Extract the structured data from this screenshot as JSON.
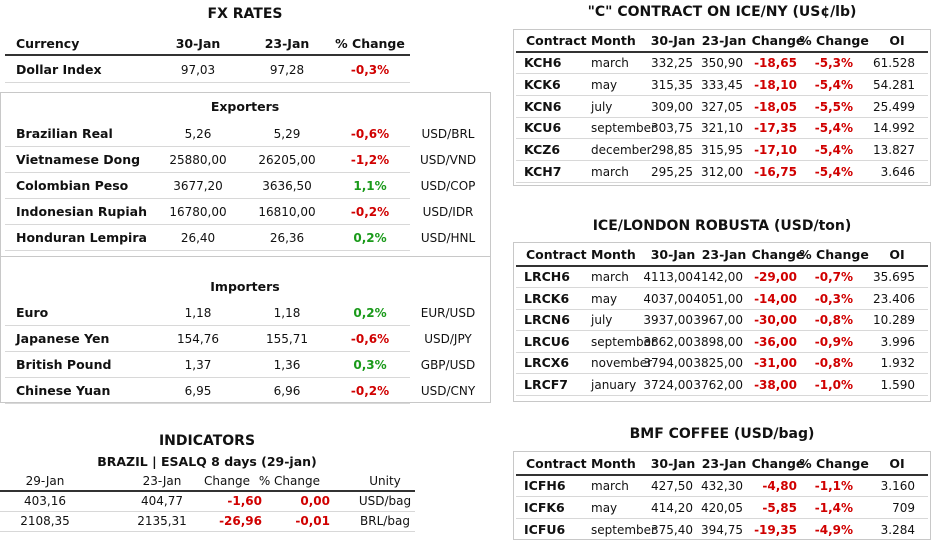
{
  "fx_rates": {
    "title": "FX RATES",
    "columns": [
      "Currency",
      "30-Jan",
      "23-Jan",
      "% Change"
    ],
    "rows": [
      [
        "Dollar Index",
        "97,03",
        "97,28",
        "-0,3%"
      ]
    ],
    "sections": [
      {
        "title": "Exporters",
        "rows": [
          [
            "Brazilian Real",
            "5,26",
            "5,29",
            "-0,6%",
            "USD/BRL"
          ],
          [
            "Vietnamese Dong",
            "25880,00",
            "26205,00",
            "-1,2%",
            "USD/VND"
          ],
          [
            "Colombian Peso",
            "3677,20",
            "3636,50",
            "1,1%",
            "USD/COP"
          ],
          [
            "Indonesian Rupiah",
            "16780,00",
            "16810,00",
            "-0,2%",
            "USD/IDR"
          ],
          [
            "Honduran Lempira",
            "26,40",
            "26,36",
            "0,2%",
            "USD/HNL"
          ]
        ]
      },
      {
        "title": "Importers",
        "rows": [
          [
            "Euro",
            "1,18",
            "1,18",
            "0,2%",
            "EUR/USD"
          ],
          [
            "Japanese Yen",
            "154,76",
            "155,71",
            "-0,6%",
            "USD/JPY"
          ],
          [
            "British Pound",
            "1,37",
            "1,36",
            "0,3%",
            "GBP/USD"
          ],
          [
            "Chinese Yuan",
            "6,95",
            "6,96",
            "-0,2%",
            "USD/CNY"
          ]
        ]
      }
    ]
  },
  "indicators": {
    "title": "INDICATORS",
    "subtitle": "BRAZIL | ESALQ 8 days (29-jan)",
    "columns": [
      "29-Jan",
      "23-Jan",
      "Change",
      "% Change",
      "Unity"
    ],
    "rows": [
      [
        "403,16",
        "404,77",
        "-1,60",
        "0,00",
        "USD/bag"
      ],
      [
        "2108,35",
        "2135,31",
        "-26,96",
        "-0,01",
        "BRL/bag"
      ]
    ]
  },
  "ice_ny": {
    "title": "\"C\" CONTRACT ON ICE/NY (US¢/lb)",
    "columns": [
      "Contract",
      "Month",
      "30-Jan",
      "23-Jan",
      "Change",
      "% Change",
      "OI"
    ],
    "rows": [
      [
        "KCH6",
        "march",
        "332,25",
        "350,90",
        "-18,65",
        "-5,3%",
        "61.528"
      ],
      [
        "KCK6",
        "may",
        "315,35",
        "333,45",
        "-18,10",
        "-5,4%",
        "54.281"
      ],
      [
        "KCN6",
        "july",
        "309,00",
        "327,05",
        "-18,05",
        "-5,5%",
        "25.499"
      ],
      [
        "KCU6",
        "september",
        "303,75",
        "321,10",
        "-17,35",
        "-5,4%",
        "14.992"
      ],
      [
        "KCZ6",
        "december",
        "298,85",
        "315,95",
        "-17,10",
        "-5,4%",
        "13.827"
      ],
      [
        "KCH7",
        "march",
        "295,25",
        "312,00",
        "-16,75",
        "-5,4%",
        "3.646"
      ]
    ]
  },
  "robusta": {
    "title": "ICE/LONDON ROBUSTA (USD/ton)",
    "columns": [
      "Contract",
      "Month",
      "30-Jan",
      "23-Jan",
      "Change",
      "% Change",
      "OI"
    ],
    "rows": [
      [
        "LRCH6",
        "march",
        "4113,00",
        "4142,00",
        "-29,00",
        "-0,7%",
        "35.695"
      ],
      [
        "LRCK6",
        "may",
        "4037,00",
        "4051,00",
        "-14,00",
        "-0,3%",
        "23.406"
      ],
      [
        "LRCN6",
        "july",
        "3937,00",
        "3967,00",
        "-30,00",
        "-0,8%",
        "10.289"
      ],
      [
        "LRCU6",
        "september",
        "3862,00",
        "3898,00",
        "-36,00",
        "-0,9%",
        "3.996"
      ],
      [
        "LRCX6",
        "november",
        "3794,00",
        "3825,00",
        "-31,00",
        "-0,8%",
        "1.932"
      ],
      [
        "LRCF7",
        "january",
        "3724,00",
        "3762,00",
        "-38,00",
        "-1,0%",
        "1.590"
      ]
    ]
  },
  "bmf": {
    "title": "BMF COFFEE (USD/bag)",
    "columns": [
      "Contract",
      "Month",
      "30-Jan",
      "23-Jan",
      "Change",
      "% Change",
      "OI"
    ],
    "rows": [
      [
        "ICFH6",
        "march",
        "427,50",
        "432,30",
        "-4,80",
        "-1,1%",
        "3.160"
      ],
      [
        "ICFK6",
        "may",
        "414,20",
        "420,05",
        "-5,85",
        "-1,4%",
        "709"
      ],
      [
        "ICFU6",
        "september",
        "375,40",
        "394,75",
        "-19,35",
        "-4,9%",
        "3.284"
      ]
    ]
  }
}
